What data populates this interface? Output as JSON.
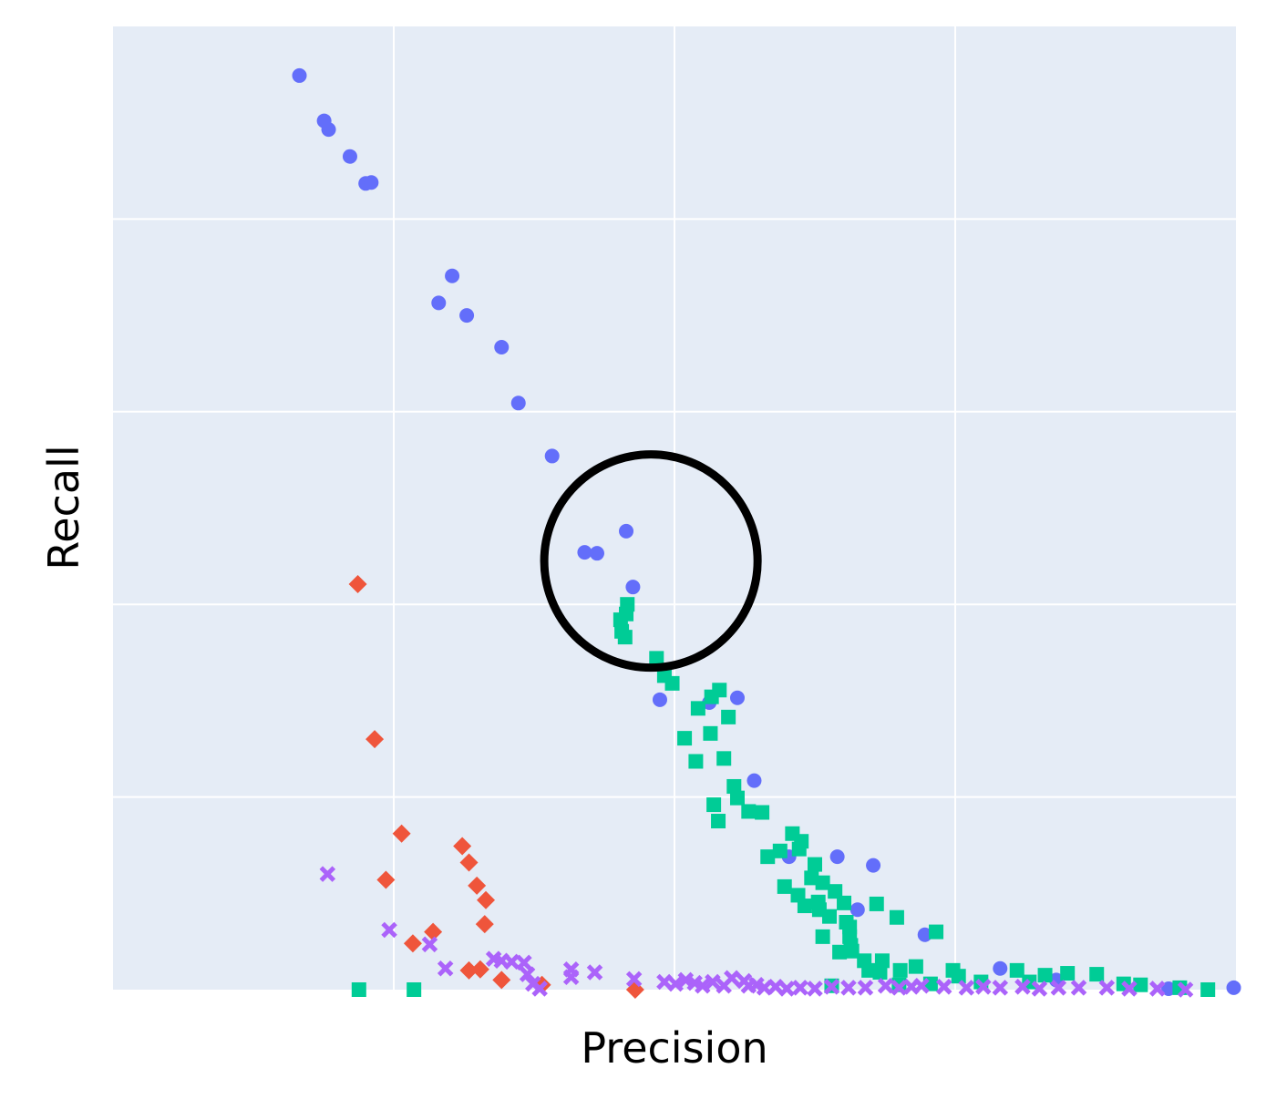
{
  "chart_data": {
    "type": "scatter",
    "title": "",
    "xlabel": "Precision",
    "ylabel": "Recall",
    "xlim": [
      0,
      1
    ],
    "ylim": [
      0,
      1
    ],
    "x_tick_labels": [],
    "y_tick_labels": [],
    "grid": true,
    "legend": "none",
    "colors": {
      "plot_background": "#e5ecf6",
      "gridline": "#ffffff",
      "annotation_circle": "#000000"
    },
    "series": [
      {
        "marker": "circle",
        "color": "#636efa",
        "points": [
          [
            0.166,
            0.949
          ],
          [
            0.188,
            0.902
          ],
          [
            0.192,
            0.893
          ],
          [
            0.211,
            0.865
          ],
          [
            0.225,
            0.837
          ],
          [
            0.23,
            0.838
          ],
          [
            0.302,
            0.741
          ],
          [
            0.29,
            0.713
          ],
          [
            0.315,
            0.7
          ],
          [
            0.346,
            0.667
          ],
          [
            0.361,
            0.609
          ],
          [
            0.391,
            0.554
          ],
          [
            0.457,
            0.476
          ],
          [
            0.42,
            0.454
          ],
          [
            0.431,
            0.453
          ],
          [
            0.463,
            0.418
          ],
          [
            0.487,
            0.301
          ],
          [
            0.531,
            0.298
          ],
          [
            0.556,
            0.303
          ],
          [
            0.571,
            0.217
          ],
          [
            0.602,
            0.138
          ],
          [
            0.645,
            0.138
          ],
          [
            0.677,
            0.129
          ],
          [
            0.663,
            0.083
          ],
          [
            0.723,
            0.057
          ],
          [
            0.79,
            0.022
          ],
          [
            0.84,
            0.01
          ],
          [
            0.94,
            0.001
          ],
          [
            0.998,
            0.002
          ]
        ]
      },
      {
        "marker": "square",
        "color": "#00cc96",
        "points": [
          [
            0.219,
            0.0
          ],
          [
            0.268,
            0.0
          ],
          [
            0.458,
            0.4
          ],
          [
            0.457,
            0.39
          ],
          [
            0.452,
            0.384
          ],
          [
            0.453,
            0.372
          ],
          [
            0.456,
            0.366
          ],
          [
            0.484,
            0.344
          ],
          [
            0.491,
            0.326
          ],
          [
            0.498,
            0.318
          ],
          [
            0.54,
            0.311
          ],
          [
            0.521,
            0.292
          ],
          [
            0.533,
            0.304
          ],
          [
            0.548,
            0.283
          ],
          [
            0.509,
            0.261
          ],
          [
            0.532,
            0.266
          ],
          [
            0.519,
            0.237
          ],
          [
            0.544,
            0.24
          ],
          [
            0.553,
            0.211
          ],
          [
            0.556,
            0.199
          ],
          [
            0.535,
            0.192
          ],
          [
            0.539,
            0.175
          ],
          [
            0.566,
            0.185
          ],
          [
            0.578,
            0.184
          ],
          [
            0.605,
            0.162
          ],
          [
            0.613,
            0.154
          ],
          [
            0.583,
            0.138
          ],
          [
            0.594,
            0.144
          ],
          [
            0.611,
            0.146
          ],
          [
            0.625,
            0.13
          ],
          [
            0.598,
            0.107
          ],
          [
            0.622,
            0.116
          ],
          [
            0.632,
            0.111
          ],
          [
            0.643,
            0.102
          ],
          [
            0.61,
            0.098
          ],
          [
            0.616,
            0.087
          ],
          [
            0.628,
            0.091
          ],
          [
            0.651,
            0.09
          ],
          [
            0.68,
            0.089
          ],
          [
            0.698,
            0.075
          ],
          [
            0.733,
            0.06
          ],
          [
            0.629,
            0.083
          ],
          [
            0.638,
            0.076
          ],
          [
            0.632,
            0.055
          ],
          [
            0.653,
            0.07
          ],
          [
            0.656,
            0.065
          ],
          [
            0.656,
            0.055
          ],
          [
            0.657,
            0.046
          ],
          [
            0.658,
            0.04
          ],
          [
            0.647,
            0.039
          ],
          [
            0.669,
            0.03
          ],
          [
            0.685,
            0.03
          ],
          [
            0.673,
            0.02
          ],
          [
            0.683,
            0.018
          ],
          [
            0.701,
            0.02
          ],
          [
            0.715,
            0.024
          ],
          [
            0.728,
            0.006
          ],
          [
            0.748,
            0.02
          ],
          [
            0.753,
            0.014
          ],
          [
            0.773,
            0.008
          ],
          [
            0.805,
            0.02
          ],
          [
            0.816,
            0.008
          ],
          [
            0.83,
            0.015
          ],
          [
            0.85,
            0.017
          ],
          [
            0.876,
            0.016
          ],
          [
            0.9,
            0.006
          ],
          [
            0.915,
            0.005
          ],
          [
            0.95,
            0.002
          ],
          [
            0.975,
            0.0
          ],
          [
            0.64,
            0.004
          ],
          [
            0.7,
            0.005
          ]
        ]
      },
      {
        "marker": "diamond",
        "color": "#ef553b",
        "points": [
          [
            0.218,
            0.421
          ],
          [
            0.233,
            0.26
          ],
          [
            0.257,
            0.162
          ],
          [
            0.243,
            0.114
          ],
          [
            0.311,
            0.149
          ],
          [
            0.317,
            0.132
          ],
          [
            0.324,
            0.108
          ],
          [
            0.332,
            0.093
          ],
          [
            0.331,
            0.068
          ],
          [
            0.285,
            0.06
          ],
          [
            0.267,
            0.048
          ],
          [
            0.317,
            0.02
          ],
          [
            0.327,
            0.021
          ],
          [
            0.346,
            0.01
          ],
          [
            0.382,
            0.005
          ],
          [
            0.465,
            0.0
          ]
        ]
      },
      {
        "marker": "x",
        "color": "#ab63fa",
        "points": [
          [
            0.191,
            0.12
          ],
          [
            0.246,
            0.062
          ],
          [
            0.282,
            0.047
          ],
          [
            0.296,
            0.022
          ],
          [
            0.339,
            0.032
          ],
          [
            0.346,
            0.03
          ],
          [
            0.355,
            0.029
          ],
          [
            0.366,
            0.028
          ],
          [
            0.369,
            0.016
          ],
          [
            0.374,
            0.006
          ],
          [
            0.38,
            0.001
          ],
          [
            0.408,
            0.021
          ],
          [
            0.408,
            0.013
          ],
          [
            0.429,
            0.018
          ],
          [
            0.464,
            0.011
          ],
          [
            0.491,
            0.008
          ],
          [
            0.501,
            0.006
          ],
          [
            0.51,
            0.01
          ],
          [
            0.518,
            0.007
          ],
          [
            0.525,
            0.004
          ],
          [
            0.534,
            0.008
          ],
          [
            0.544,
            0.004
          ],
          [
            0.551,
            0.012
          ],
          [
            0.562,
            0.009
          ],
          [
            0.566,
            0.004
          ],
          [
            0.573,
            0.005
          ],
          [
            0.58,
            0.002
          ],
          [
            0.59,
            0.003
          ],
          [
            0.6,
            0.001
          ],
          [
            0.612,
            0.002
          ],
          [
            0.625,
            0.001
          ],
          [
            0.64,
            0.003
          ],
          [
            0.655,
            0.002
          ],
          [
            0.67,
            0.002
          ],
          [
            0.688,
            0.004
          ],
          [
            0.7,
            0.002
          ],
          [
            0.711,
            0.003
          ],
          [
            0.72,
            0.004
          ],
          [
            0.74,
            0.003
          ],
          [
            0.76,
            0.002
          ],
          [
            0.775,
            0.003
          ],
          [
            0.79,
            0.002
          ],
          [
            0.81,
            0.003
          ],
          [
            0.825,
            0.001
          ],
          [
            0.842,
            0.002
          ],
          [
            0.86,
            0.002
          ],
          [
            0.885,
            0.002
          ],
          [
            0.905,
            0.001
          ],
          [
            0.93,
            0.001
          ],
          [
            0.955,
            0.0
          ]
        ]
      }
    ],
    "annotations": [
      {
        "shape": "circle",
        "center": [
          0.479,
          0.445
        ],
        "radius_x": 0.095
      }
    ]
  }
}
